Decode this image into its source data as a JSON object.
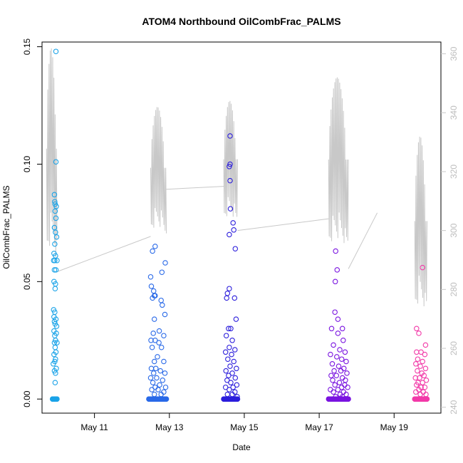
{
  "chart_data": {
    "type": "scatter",
    "title": "ATOM4 Northbound OilCombFrac_PALMS",
    "xlabel": "Date",
    "ylabel": "OilCombFrac_PALMS",
    "x_ticks": [
      "May 11",
      "May 13",
      "May 15",
      "May 17",
      "May 19"
    ],
    "x_tick_days": [
      11,
      13,
      15,
      17,
      19
    ],
    "xlim": [
      9.6,
      20.25
    ],
    "ylim": [
      -0.006,
      0.152
    ],
    "y_ticks": [
      0.0,
      0.05,
      0.1,
      0.15
    ],
    "y_tick_labels": [
      "0.00",
      "0.05",
      "0.10",
      "0.15"
    ],
    "y2lim": [
      238,
      364
    ],
    "y2_ticks": [
      240,
      260,
      280,
      300,
      320,
      340,
      360
    ],
    "y2_tick_labels": [
      "240",
      "260",
      "280",
      "300",
      "320",
      "340",
      "360"
    ],
    "y2_color": "#c8c8c8",
    "series": [
      {
        "color": "#1aa3e8",
        "x_range": [
          9.88,
          10.0
        ],
        "points": [
          [
            9.97,
            0.148
          ],
          [
            9.97,
            0.101
          ],
          [
            9.93,
            0.087
          ],
          [
            9.95,
            0.083
          ],
          [
            9.94,
            0.084
          ],
          [
            9.98,
            0.082
          ],
          [
            9.95,
            0.08
          ],
          [
            9.97,
            0.077
          ],
          [
            9.93,
            0.073
          ],
          [
            9.96,
            0.071
          ],
          [
            9.99,
            0.069
          ],
          [
            9.94,
            0.066
          ],
          [
            9.92,
            0.062
          ],
          [
            9.96,
            0.061
          ],
          [
            9.91,
            0.059
          ],
          [
            9.94,
            0.059
          ],
          [
            10.0,
            0.059
          ],
          [
            9.93,
            0.055
          ],
          [
            9.97,
            0.055
          ],
          [
            9.92,
            0.05
          ],
          [
            9.96,
            0.049
          ],
          [
            9.95,
            0.047
          ],
          [
            9.91,
            0.038
          ],
          [
            9.94,
            0.037
          ],
          [
            9.92,
            0.035
          ],
          [
            9.97,
            0.034
          ],
          [
            9.93,
            0.033
          ],
          [
            9.95,
            0.032
          ],
          [
            9.99,
            0.031
          ],
          [
            9.92,
            0.029
          ],
          [
            9.98,
            0.028
          ],
          [
            9.94,
            0.027
          ],
          [
            9.96,
            0.025
          ],
          [
            9.93,
            0.024
          ],
          [
            10.0,
            0.024
          ],
          [
            9.95,
            0.022
          ],
          [
            9.97,
            0.02
          ],
          [
            9.92,
            0.019
          ],
          [
            9.96,
            0.017
          ],
          [
            9.94,
            0.016
          ],
          [
            9.9,
            0.015
          ],
          [
            9.98,
            0.013
          ],
          [
            9.93,
            0.012
          ],
          [
            9.96,
            0.011
          ],
          [
            9.95,
            0.007
          ]
        ],
        "zero_count": 30
      },
      {
        "color": "#2a6ae8",
        "x_range": [
          12.45,
          12.92
        ],
        "points": [
          [
            12.62,
            0.065
          ],
          [
            12.89,
            0.058
          ],
          [
            12.55,
            0.063
          ],
          [
            12.8,
            0.054
          ],
          [
            12.5,
            0.052
          ],
          [
            12.52,
            0.048
          ],
          [
            12.58,
            0.046
          ],
          [
            12.6,
            0.044
          ],
          [
            12.62,
            0.044
          ],
          [
            12.55,
            0.043
          ],
          [
            12.78,
            0.042
          ],
          [
            12.81,
            0.04
          ],
          [
            12.88,
            0.036
          ],
          [
            12.6,
            0.034
          ],
          [
            12.73,
            0.029
          ],
          [
            12.57,
            0.028
          ],
          [
            12.85,
            0.027
          ],
          [
            12.51,
            0.025
          ],
          [
            12.62,
            0.025
          ],
          [
            12.72,
            0.024
          ],
          [
            12.54,
            0.022
          ],
          [
            12.79,
            0.022
          ],
          [
            12.68,
            0.018
          ],
          [
            12.6,
            0.016
          ],
          [
            12.85,
            0.016
          ],
          [
            12.52,
            0.013
          ],
          [
            12.64,
            0.013
          ],
          [
            12.76,
            0.012
          ],
          [
            12.58,
            0.011
          ],
          [
            12.88,
            0.011
          ],
          [
            12.5,
            0.009
          ],
          [
            12.66,
            0.009
          ],
          [
            12.82,
            0.008
          ],
          [
            12.56,
            0.007
          ],
          [
            12.74,
            0.006
          ],
          [
            12.62,
            0.005
          ],
          [
            12.9,
            0.005
          ],
          [
            12.53,
            0.004
          ],
          [
            12.7,
            0.004
          ],
          [
            12.85,
            0.003
          ],
          [
            12.6,
            0.002
          ],
          [
            12.78,
            0.002
          ]
        ],
        "zero_count": 70
      },
      {
        "color": "#2c1edc",
        "x_range": [
          14.45,
          14.82
        ],
        "points": [
          [
            14.62,
            0.112
          ],
          [
            14.62,
            0.1
          ],
          [
            14.6,
            0.099
          ],
          [
            14.62,
            0.093
          ],
          [
            14.63,
            0.081
          ],
          [
            14.7,
            0.075
          ],
          [
            14.72,
            0.072
          ],
          [
            14.6,
            0.07
          ],
          [
            14.76,
            0.064
          ],
          [
            14.6,
            0.047
          ],
          [
            14.55,
            0.045
          ],
          [
            14.53,
            0.043
          ],
          [
            14.74,
            0.043
          ],
          [
            14.78,
            0.034
          ],
          [
            14.58,
            0.03
          ],
          [
            14.64,
            0.03
          ],
          [
            14.52,
            0.027
          ],
          [
            14.68,
            0.025
          ],
          [
            14.6,
            0.022
          ],
          [
            14.75,
            0.021
          ],
          [
            14.5,
            0.02
          ],
          [
            14.66,
            0.019
          ],
          [
            14.56,
            0.017
          ],
          [
            14.72,
            0.016
          ],
          [
            14.62,
            0.014
          ],
          [
            14.79,
            0.013
          ],
          [
            14.51,
            0.012
          ],
          [
            14.68,
            0.011
          ],
          [
            14.58,
            0.01
          ],
          [
            14.76,
            0.009
          ],
          [
            14.54,
            0.008
          ],
          [
            14.64,
            0.007
          ],
          [
            14.8,
            0.006
          ],
          [
            14.5,
            0.005
          ],
          [
            14.7,
            0.005
          ],
          [
            14.6,
            0.004
          ],
          [
            14.75,
            0.003
          ],
          [
            14.55,
            0.002
          ],
          [
            14.68,
            0.002
          ],
          [
            14.81,
            0.001
          ]
        ],
        "zero_count": 70
      },
      {
        "color": "#7a14e0",
        "x_range": [
          17.25,
          17.78
        ],
        "points": [
          [
            17.44,
            0.063
          ],
          [
            17.48,
            0.055
          ],
          [
            17.43,
            0.05
          ],
          [
            17.42,
            0.037
          ],
          [
            17.5,
            0.034
          ],
          [
            17.62,
            0.03
          ],
          [
            17.33,
            0.03
          ],
          [
            17.5,
            0.028
          ],
          [
            17.64,
            0.025
          ],
          [
            17.38,
            0.023
          ],
          [
            17.55,
            0.021
          ],
          [
            17.69,
            0.02
          ],
          [
            17.3,
            0.019
          ],
          [
            17.47,
            0.018
          ],
          [
            17.6,
            0.017
          ],
          [
            17.72,
            0.016
          ],
          [
            17.35,
            0.015
          ],
          [
            17.52,
            0.014
          ],
          [
            17.66,
            0.013
          ],
          [
            17.4,
            0.012
          ],
          [
            17.58,
            0.012
          ],
          [
            17.74,
            0.011
          ],
          [
            17.32,
            0.01
          ],
          [
            17.46,
            0.01
          ],
          [
            17.62,
            0.009
          ],
          [
            17.7,
            0.008
          ],
          [
            17.36,
            0.008
          ],
          [
            17.54,
            0.007
          ],
          [
            17.68,
            0.006
          ],
          [
            17.42,
            0.006
          ],
          [
            17.6,
            0.005
          ],
          [
            17.76,
            0.005
          ],
          [
            17.3,
            0.004
          ],
          [
            17.5,
            0.004
          ],
          [
            17.65,
            0.003
          ],
          [
            17.38,
            0.003
          ],
          [
            17.56,
            0.002
          ],
          [
            17.72,
            0.002
          ],
          [
            17.44,
            0.001
          ],
          [
            17.62,
            0.001
          ]
        ],
        "zero_count": 80
      },
      {
        "color": "#f23aa8",
        "x_range": [
          19.55,
          19.88
        ],
        "points": [
          [
            19.76,
            0.056
          ],
          [
            19.6,
            0.03
          ],
          [
            19.66,
            0.028
          ],
          [
            19.84,
            0.023
          ],
          [
            19.6,
            0.02
          ],
          [
            19.72,
            0.02
          ],
          [
            19.82,
            0.019
          ],
          [
            19.63,
            0.017
          ],
          [
            19.76,
            0.016
          ],
          [
            19.58,
            0.015
          ],
          [
            19.7,
            0.014
          ],
          [
            19.84,
            0.013
          ],
          [
            19.62,
            0.012
          ],
          [
            19.74,
            0.011
          ],
          [
            19.8,
            0.01
          ],
          [
            19.57,
            0.009
          ],
          [
            19.68,
            0.009
          ],
          [
            19.86,
            0.008
          ],
          [
            19.64,
            0.007
          ],
          [
            19.76,
            0.007
          ],
          [
            19.6,
            0.006
          ],
          [
            19.72,
            0.005
          ],
          [
            19.82,
            0.005
          ],
          [
            19.66,
            0.004
          ],
          [
            19.78,
            0.003
          ],
          [
            19.58,
            0.003
          ],
          [
            19.7,
            0.002
          ],
          [
            19.85,
            0.002
          ]
        ],
        "zero_count": 50
      }
    ],
    "secondary_line": {
      "color": "#c8c8c8",
      "segments": [
        {
          "x_range": [
            9.72,
            10.0
          ],
          "oscillation": true,
          "peak": 362,
          "base": 286
        },
        {
          "x": [
            10.0,
            12.5
          ],
          "y": [
            286,
            298
          ],
          "oscillation": false
        },
        {
          "x_range": [
            12.5,
            12.92
          ],
          "oscillation": true,
          "peak": 342,
          "base": 296
        },
        {
          "x": [
            12.92,
            14.45
          ],
          "y": [
            314,
            315
          ],
          "oscillation": false
        },
        {
          "x_range": [
            14.45,
            14.82
          ],
          "oscillation": true,
          "peak": 344,
          "base": 300
        },
        {
          "x": [
            14.82,
            17.25
          ],
          "y": [
            300,
            304
          ],
          "oscillation": false
        },
        {
          "x_range": [
            17.25,
            17.78
          ],
          "oscillation": true,
          "peak": 352,
          "base": 290
        },
        {
          "x": [
            17.78,
            18.55
          ],
          "y": [
            287,
            306
          ],
          "oscillation": false
        },
        {
          "x_range": [
            19.55,
            19.88
          ],
          "oscillation": true,
          "peak": 332,
          "base": 268
        }
      ]
    }
  }
}
